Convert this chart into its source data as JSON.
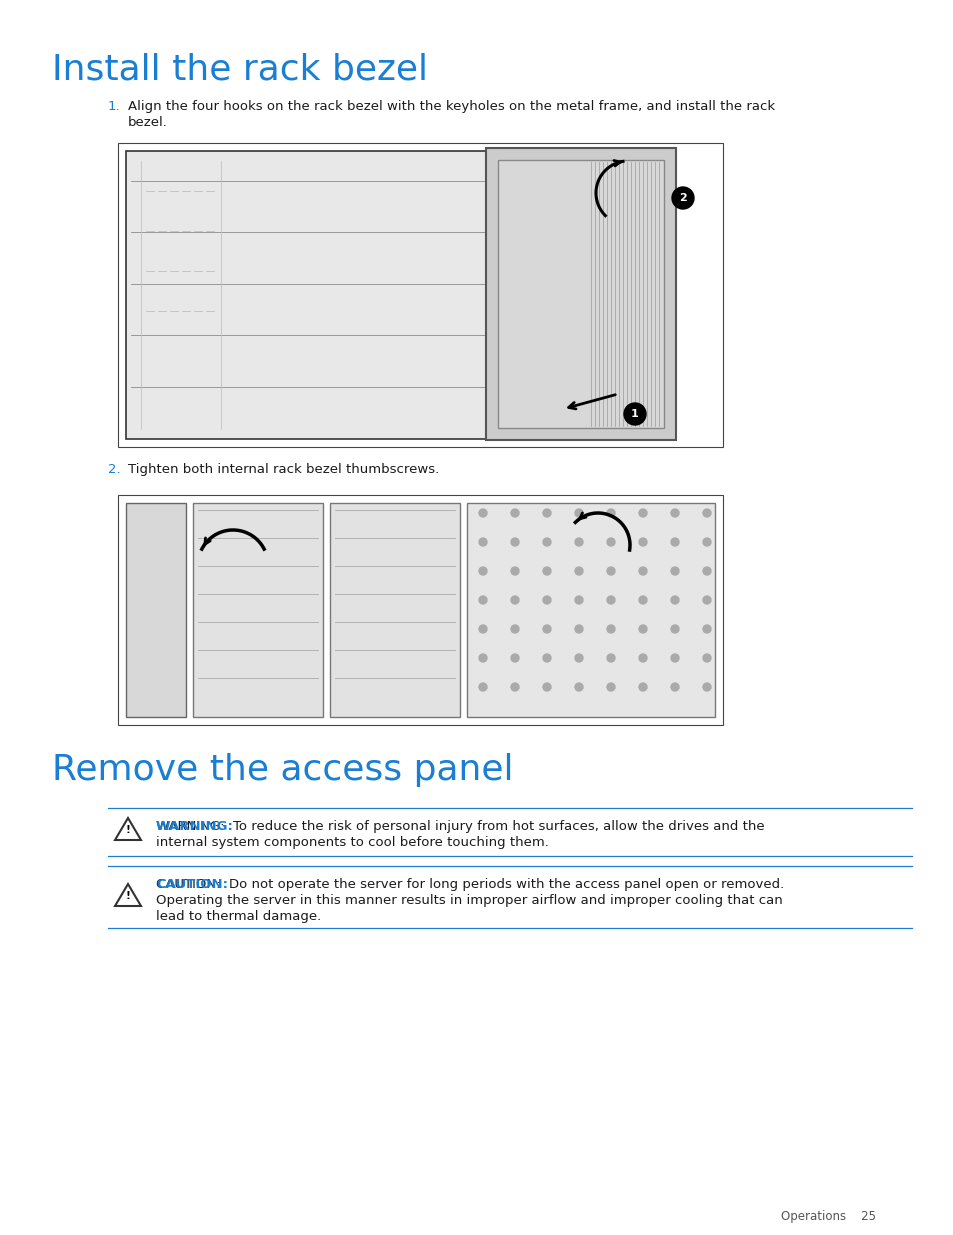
{
  "title1": "Install the rack bezel",
  "title2": "Remove the access panel",
  "title_color": "#1a7fd4",
  "title_fontsize": 26,
  "body_color": "#1a1a1a",
  "body_fontsize": 9.5,
  "label_fontsize": 9.5,
  "step1_number": "1.",
  "step1_color": "#1a7fd4",
  "step1_text": "Align the four hooks on the rack bezel with the keyholes on the metal frame, and install the rack bezel.",
  "step2_number": "2.",
  "step2_color": "#1a7fd4",
  "step2_text": "Tighten both internal rack bezel thumbscrews.",
  "warning_label": "WARNING:",
  "warning_color": "#1a7fd4",
  "warning_body": "To reduce the risk of personal injury from hot surfaces, allow the drives and the internal system components to cool before touching them.",
  "caution_label": "CAUTION:",
  "caution_color": "#1a7fd4",
  "caution_body": "Do not operate the server for long periods with the access panel open or removed. Operating the server in this manner results in improper airflow and improper cooling that can lead to thermal damage.",
  "footer_text": "Operations    25",
  "bg_color": "#ffffff",
  "line_color": "#1a7fd4",
  "img1_border": "#555555",
  "img2_border": "#555555"
}
